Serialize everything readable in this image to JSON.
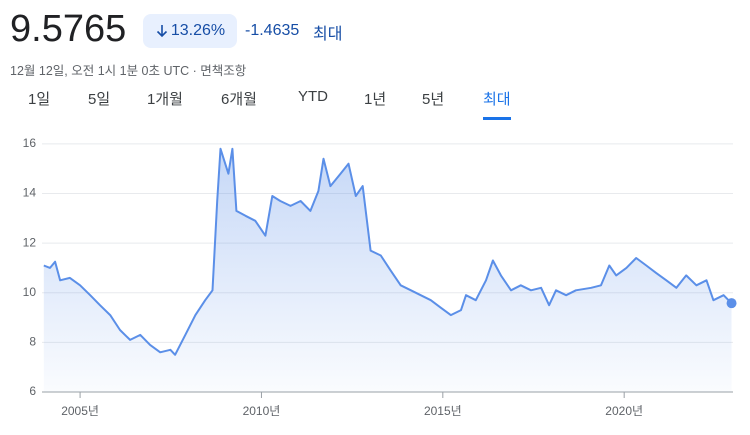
{
  "header": {
    "price": "9.5765",
    "change_percent": "13.26%",
    "change": "-1.4635",
    "range_label": "최대",
    "timestamp": "12월 12일, 오전 1시 1분 0초 UTC · 면책조항",
    "tabs": [
      "1일",
      "5일",
      "1개월",
      "6개월",
      "YTD",
      "1년",
      "5년",
      "최대"
    ],
    "selected_tab": 7
  },
  "chart_data": {
    "type": "area",
    "color": "#5b8fe8",
    "x": [
      2004.0,
      2004.17,
      2004.31,
      2004.45,
      2004.72,
      2005.0,
      2005.28,
      2005.55,
      2005.83,
      2006.1,
      2006.38,
      2006.66,
      2006.93,
      2007.21,
      2007.49,
      2007.62,
      2007.9,
      2008.18,
      2008.45,
      2008.65,
      2008.78,
      2008.87,
      2009.09,
      2009.2,
      2009.31,
      2009.56,
      2009.83,
      2010.11,
      2010.3,
      2010.52,
      2010.8,
      2011.08,
      2011.35,
      2011.57,
      2011.71,
      2011.9,
      2012.18,
      2012.4,
      2012.6,
      2012.79,
      2013.01,
      2013.29,
      2013.56,
      2013.84,
      2014.12,
      2014.39,
      2014.67,
      2014.94,
      2015.22,
      2015.5,
      2015.64,
      2015.91,
      2016.19,
      2016.38,
      2016.6,
      2016.88,
      2017.15,
      2017.43,
      2017.71,
      2017.93,
      2018.12,
      2018.4,
      2018.67,
      2019.09,
      2019.36,
      2019.59,
      2019.78,
      2020.06,
      2020.33,
      2020.61,
      2020.88,
      2021.16,
      2021.44,
      2021.71,
      2021.99,
      2022.27,
      2022.46,
      2022.74,
      2022.96
    ],
    "values": [
      11.1,
      11.0,
      11.25,
      10.5,
      10.6,
      10.3,
      9.9,
      9.5,
      9.1,
      8.5,
      8.1,
      8.3,
      7.9,
      7.6,
      7.7,
      7.5,
      8.3,
      9.1,
      9.7,
      10.1,
      13.7,
      15.8,
      14.8,
      15.8,
      13.3,
      13.1,
      12.9,
      12.3,
      13.9,
      13.7,
      13.5,
      13.7,
      13.3,
      14.1,
      15.4,
      14.3,
      14.8,
      15.2,
      13.9,
      14.3,
      11.7,
      11.5,
      10.9,
      10.3,
      10.1,
      9.9,
      9.7,
      9.4,
      9.1,
      9.3,
      9.9,
      9.7,
      10.5,
      11.3,
      10.7,
      10.1,
      10.3,
      10.1,
      10.2,
      9.5,
      10.1,
      9.9,
      10.1,
      10.2,
      10.3,
      11.1,
      10.7,
      11.0,
      11.4,
      11.1,
      10.8,
      10.5,
      10.2,
      10.7,
      10.3,
      10.5,
      9.7,
      9.9,
      9.58
    ],
    "xlim": [
      2003.95,
      2023.0
    ],
    "ylim": [
      6,
      16.6
    ],
    "xticks": [
      {
        "value": 2005,
        "label": "2005년"
      },
      {
        "value": 2010,
        "label": "2010년"
      },
      {
        "value": 2015,
        "label": "2015년"
      },
      {
        "value": 2020,
        "label": "2020년"
      }
    ],
    "yticks": [
      6,
      8,
      10,
      12,
      14,
      16
    ],
    "grid": true
  }
}
